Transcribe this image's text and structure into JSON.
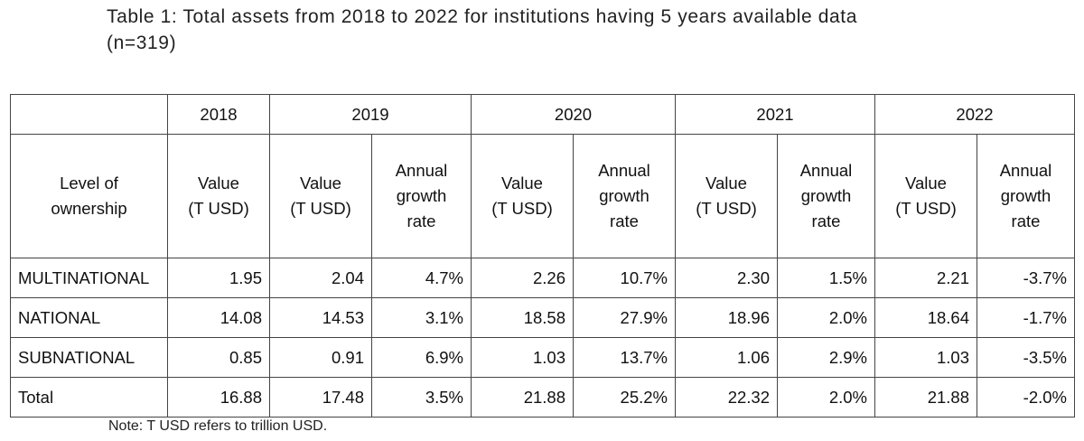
{
  "title": {
    "line1": "Table 1: Total assets from 2018 to 2022 for institutions having 5 years available data",
    "line2": "(n=319)"
  },
  "years": [
    "2018",
    "2019",
    "2020",
    "2021",
    "2022"
  ],
  "subheaders": {
    "row_label": [
      "Level of",
      "ownership"
    ],
    "value": [
      "Value",
      "(T USD)"
    ],
    "growth": [
      "Annual",
      "growth",
      "rate"
    ]
  },
  "rows": [
    {
      "label": "MULTINATIONAL",
      "v2018": "1.95",
      "v2019": "2.04",
      "g2019": "4.7%",
      "v2020": "2.26",
      "g2020": "10.7%",
      "v2021": "2.30",
      "g2021": "1.5%",
      "v2022": "2.21",
      "g2022": "-3.7%"
    },
    {
      "label": "NATIONAL",
      "v2018": "14.08",
      "v2019": "14.53",
      "g2019": "3.1%",
      "v2020": "18.58",
      "g2020": "27.9%",
      "v2021": "18.96",
      "g2021": "2.0%",
      "v2022": "18.64",
      "g2022": "-1.7%"
    },
    {
      "label": "SUBNATIONAL",
      "v2018": "0.85",
      "v2019": "0.91",
      "g2019": "6.9%",
      "v2020": "1.03",
      "g2020": "13.7%",
      "v2021": "1.06",
      "g2021": "2.9%",
      "v2022": "1.03",
      "g2022": "-3.5%"
    },
    {
      "label": "Total",
      "v2018": "16.88",
      "v2019": "17.48",
      "g2019": "3.5%",
      "v2020": "21.88",
      "g2020": "25.2%",
      "v2021": "22.32",
      "g2021": "2.0%",
      "v2022": "21.88",
      "g2022": "-2.0%"
    }
  ],
  "note": "Note: T USD refers to trillion USD."
}
